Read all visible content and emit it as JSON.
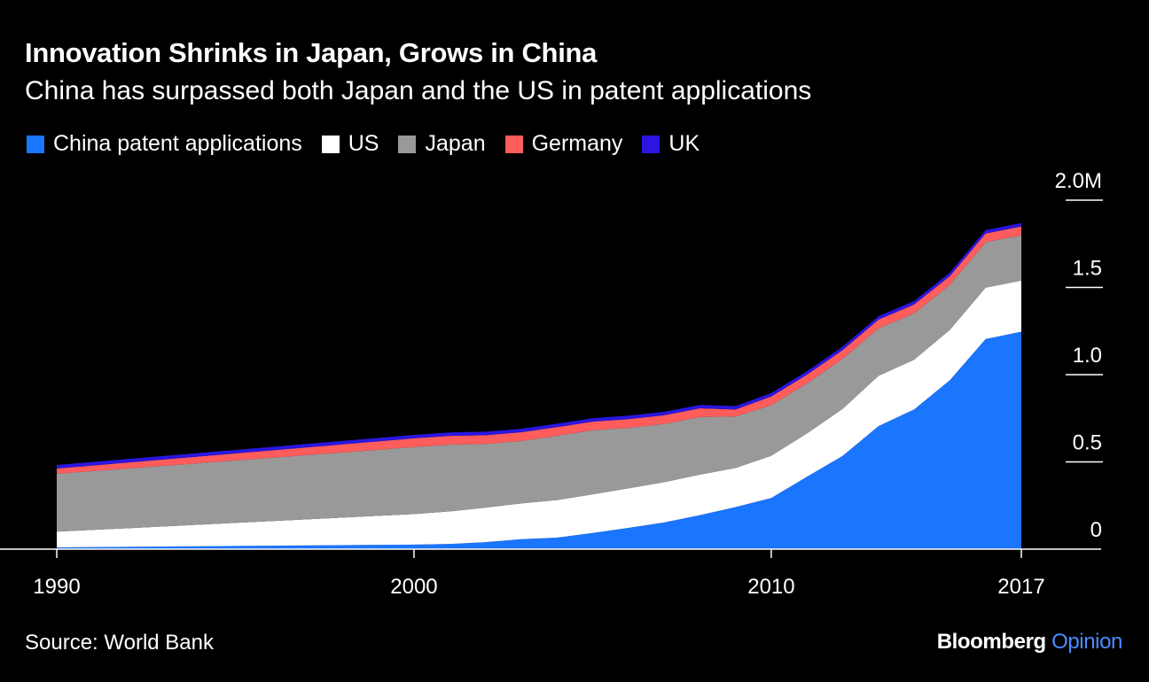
{
  "title": "Innovation Shrinks in Japan, Grows in China",
  "subtitle": "China has surpassed both Japan and the US in patent applications",
  "source": "Source: World Bank",
  "brand": {
    "name": "Bloomberg",
    "accent": "Opinion",
    "accent_color": "#4a8cff"
  },
  "chart_data": {
    "type": "area",
    "stacked": true,
    "x": [
      1990,
      2000,
      2001,
      2002,
      2003,
      2004,
      2005,
      2006,
      2007,
      2008,
      2009,
      2010,
      2011,
      2012,
      2013,
      2014,
      2015,
      2016,
      2017
    ],
    "series": [
      {
        "name": "China patent applications",
        "color": "#1a75ff",
        "values": [
          0.01,
          0.026,
          0.03,
          0.04,
          0.057,
          0.066,
          0.093,
          0.122,
          0.153,
          0.195,
          0.241,
          0.293,
          0.415,
          0.535,
          0.705,
          0.801,
          0.968,
          1.204,
          1.246
        ]
      },
      {
        "name": "US",
        "color": "#ffffff",
        "values": [
          0.09,
          0.175,
          0.186,
          0.198,
          0.205,
          0.215,
          0.221,
          0.226,
          0.231,
          0.232,
          0.224,
          0.242,
          0.248,
          0.269,
          0.288,
          0.285,
          0.289,
          0.295,
          0.293
        ]
      },
      {
        "name": "Japan",
        "color": "#999999",
        "values": [
          0.332,
          0.384,
          0.383,
          0.365,
          0.358,
          0.368,
          0.367,
          0.347,
          0.333,
          0.33,
          0.295,
          0.29,
          0.287,
          0.287,
          0.272,
          0.266,
          0.258,
          0.26,
          0.26
        ]
      },
      {
        "name": "Germany",
        "color": "#ff5c5c",
        "values": [
          0.03,
          0.05,
          0.05,
          0.05,
          0.05,
          0.05,
          0.05,
          0.05,
          0.05,
          0.05,
          0.04,
          0.05,
          0.05,
          0.05,
          0.05,
          0.05,
          0.05,
          0.05,
          0.05
        ]
      },
      {
        "name": "UK",
        "color": "#2a16e0",
        "values": [
          0.02,
          0.02,
          0.02,
          0.02,
          0.02,
          0.02,
          0.02,
          0.02,
          0.02,
          0.02,
          0.02,
          0.02,
          0.02,
          0.02,
          0.02,
          0.02,
          0.02,
          0.02,
          0.02
        ]
      }
    ],
    "y_ticks": [
      {
        "value": 0,
        "label": "0"
      },
      {
        "value": 0.5,
        "label": "0.5"
      },
      {
        "value": 1.0,
        "label": "1.0"
      },
      {
        "value": 1.5,
        "label": "1.5"
      },
      {
        "value": 2.0,
        "label": "2.0M"
      }
    ],
    "x_ticks": [
      {
        "value": 1990,
        "label": "1990"
      },
      {
        "value": 2000,
        "label": "2000"
      },
      {
        "value": 2010,
        "label": "2010"
      },
      {
        "value": 2017,
        "label": "2017"
      }
    ],
    "ylim": [
      0,
      2.0
    ],
    "xlim": [
      1990,
      2017
    ],
    "y_axis_side": "right",
    "grid": false,
    "legend_position": "top-left"
  }
}
